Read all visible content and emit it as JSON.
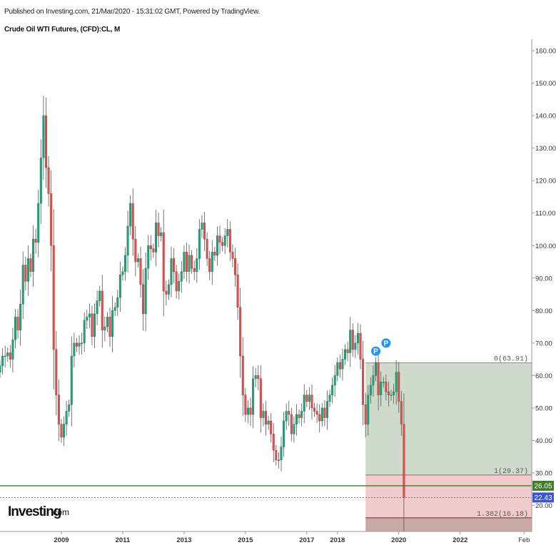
{
  "header": {
    "published": "Published on Investing.com, 21/Mar/2020 - 15:31:02 GMT, Powered by TradingView.",
    "symbol": "Crude Oil WTI Futures, (CFD):CL, M"
  },
  "logo": {
    "name": "Investing",
    "suffix": ".com"
  },
  "colors": {
    "up": "#26a17b",
    "down": "#e0524f",
    "wick": "#555555",
    "green_zone": "#cfdccb",
    "red_zone": "#f1cccc",
    "support_line": "#3f7d2a",
    "price_line": "#3a56d8"
  },
  "chart_data": {
    "type": "candlestick",
    "timeframe": "M",
    "ylim": [
      10,
      162
    ],
    "y_ticks": [
      "160.00",
      "150.00",
      "140.00",
      "130.00",
      "120.00",
      "110.00",
      "100.00",
      "90.00",
      "80.00",
      "70.00",
      "60.00",
      "50.00",
      "40.00",
      "30.00",
      "20.00"
    ],
    "y_tick_values": [
      160,
      150,
      140,
      130,
      120,
      110,
      100,
      90,
      80,
      70,
      60,
      50,
      40,
      30,
      20
    ],
    "x_ticks": [
      "2009",
      "2011",
      "2013",
      "2015",
      "2017",
      "2018",
      "2020",
      "2022",
      "Feb"
    ],
    "x_tick_dates": [
      "2009-01",
      "2011-01",
      "2013-01",
      "2015-01",
      "2017-01",
      "2018-01",
      "2020-01",
      "2022-01",
      "2024-02"
    ],
    "x_range": [
      "2007-01",
      "2024-05"
    ],
    "closes": [
      [
        "2007-01",
        63
      ],
      [
        "2007-02",
        66
      ],
      [
        "2007-03",
        66
      ],
      [
        "2007-04",
        67
      ],
      [
        "2007-05",
        65
      ],
      [
        "2007-06",
        71
      ],
      [
        "2007-07",
        78
      ],
      [
        "2007-08",
        74
      ],
      [
        "2007-09",
        82
      ],
      [
        "2007-10",
        94
      ],
      [
        "2007-11",
        89
      ],
      [
        "2007-12",
        96
      ],
      [
        "2008-01",
        92
      ],
      [
        "2008-02",
        102
      ],
      [
        "2008-03",
        101
      ],
      [
        "2008-04",
        113
      ],
      [
        "2008-05",
        127
      ],
      [
        "2008-06",
        140
      ],
      [
        "2008-07",
        124
      ],
      [
        "2008-08",
        116
      ],
      [
        "2008-09",
        100
      ],
      [
        "2008-10",
        68
      ],
      [
        "2008-11",
        54
      ],
      [
        "2008-12",
        45
      ],
      [
        "2009-01",
        41
      ],
      [
        "2009-02",
        45
      ],
      [
        "2009-03",
        49
      ],
      [
        "2009-04",
        51
      ],
      [
        "2009-05",
        66
      ],
      [
        "2009-06",
        70
      ],
      [
        "2009-07",
        69
      ],
      [
        "2009-08",
        70
      ],
      [
        "2009-09",
        70
      ],
      [
        "2009-10",
        77
      ],
      [
        "2009-11",
        78
      ],
      [
        "2009-12",
        79
      ],
      [
        "2010-01",
        72
      ],
      [
        "2010-02",
        79
      ],
      [
        "2010-03",
        83
      ],
      [
        "2010-04",
        86
      ],
      [
        "2010-05",
        74
      ],
      [
        "2010-06",
        75
      ],
      [
        "2010-07",
        78
      ],
      [
        "2010-08",
        72
      ],
      [
        "2010-09",
        80
      ],
      [
        "2010-10",
        81
      ],
      [
        "2010-11",
        84
      ],
      [
        "2010-12",
        91
      ],
      [
        "2011-01",
        92
      ],
      [
        "2011-02",
        97
      ],
      [
        "2011-03",
        106
      ],
      [
        "2011-04",
        113
      ],
      [
        "2011-05",
        102
      ],
      [
        "2011-06",
        95
      ],
      [
        "2011-07",
        96
      ],
      [
        "2011-08",
        88
      ],
      [
        "2011-09",
        79
      ],
      [
        "2011-10",
        93
      ],
      [
        "2011-11",
        100
      ],
      [
        "2011-12",
        99
      ],
      [
        "2012-01",
        98
      ],
      [
        "2012-02",
        107
      ],
      [
        "2012-03",
        103
      ],
      [
        "2012-04",
        104
      ],
      [
        "2012-05",
        86
      ],
      [
        "2012-06",
        85
      ],
      [
        "2012-07",
        88
      ],
      [
        "2012-08",
        96
      ],
      [
        "2012-09",
        92
      ],
      [
        "2012-10",
        86
      ],
      [
        "2012-11",
        89
      ],
      [
        "2012-12",
        92
      ],
      [
        "2013-01",
        98
      ],
      [
        "2013-02",
        92
      ],
      [
        "2013-03",
        97
      ],
      [
        "2013-04",
        93
      ],
      [
        "2013-05",
        92
      ],
      [
        "2013-06",
        96
      ],
      [
        "2013-07",
        105
      ],
      [
        "2013-08",
        107
      ],
      [
        "2013-09",
        102
      ],
      [
        "2013-10",
        96
      ],
      [
        "2013-11",
        92
      ],
      [
        "2013-12",
        98
      ],
      [
        "2014-01",
        97
      ],
      [
        "2014-02",
        103
      ],
      [
        "2014-03",
        101
      ],
      [
        "2014-04",
        100
      ],
      [
        "2014-05",
        103
      ],
      [
        "2014-06",
        105
      ],
      [
        "2014-07",
        98
      ],
      [
        "2014-08",
        96
      ],
      [
        "2014-09",
        91
      ],
      [
        "2014-10",
        81
      ],
      [
        "2014-11",
        66
      ],
      [
        "2014-12",
        54
      ],
      [
        "2015-01",
        48
      ],
      [
        "2015-02",
        50
      ],
      [
        "2015-03",
        48
      ],
      [
        "2015-04",
        59
      ],
      [
        "2015-05",
        60
      ],
      [
        "2015-06",
        59
      ],
      [
        "2015-07",
        47
      ],
      [
        "2015-08",
        49
      ],
      [
        "2015-09",
        45
      ],
      [
        "2015-10",
        46
      ],
      [
        "2015-11",
        42
      ],
      [
        "2015-12",
        37
      ],
      [
        "2016-01",
        34
      ],
      [
        "2016-02",
        34
      ],
      [
        "2016-03",
        38
      ],
      [
        "2016-04",
        46
      ],
      [
        "2016-05",
        49
      ],
      [
        "2016-06",
        48
      ],
      [
        "2016-07",
        42
      ],
      [
        "2016-08",
        45
      ],
      [
        "2016-09",
        48
      ],
      [
        "2016-10",
        47
      ],
      [
        "2016-11",
        49
      ],
      [
        "2016-12",
        54
      ],
      [
        "2017-01",
        52
      ],
      [
        "2017-02",
        54
      ],
      [
        "2017-03",
        50
      ],
      [
        "2017-04",
        49
      ],
      [
        "2017-05",
        48
      ],
      [
        "2017-06",
        46
      ],
      [
        "2017-07",
        50
      ],
      [
        "2017-08",
        47
      ],
      [
        "2017-09",
        52
      ],
      [
        "2017-10",
        54
      ],
      [
        "2017-11",
        57
      ],
      [
        "2017-12",
        60
      ],
      [
        "2018-01",
        64
      ],
      [
        "2018-02",
        62
      ],
      [
        "2018-03",
        65
      ],
      [
        "2018-04",
        68
      ],
      [
        "2018-05",
        67
      ],
      [
        "2018-06",
        74
      ],
      [
        "2018-07",
        68
      ],
      [
        "2018-08",
        70
      ],
      [
        "2018-09",
        73
      ],
      [
        "2018-10",
        65
      ],
      [
        "2018-11",
        51
      ],
      [
        "2018-12",
        45
      ],
      [
        "2019-01",
        54
      ],
      [
        "2019-02",
        57
      ],
      [
        "2019-03",
        60
      ],
      [
        "2019-04",
        64
      ],
      [
        "2019-05",
        54
      ],
      [
        "2019-06",
        58
      ],
      [
        "2019-07",
        58
      ],
      [
        "2019-08",
        55
      ],
      [
        "2019-09",
        54
      ],
      [
        "2019-10",
        54
      ],
      [
        "2019-11",
        55
      ],
      [
        "2019-12",
        61
      ],
      [
        "2020-01",
        52
      ],
      [
        "2020-02",
        45
      ],
      [
        "2020-03",
        22.43
      ]
    ],
    "annotations": [
      {
        "label": "P",
        "date": "2019-04",
        "price": 67.5
      },
      {
        "label": "P",
        "date": "2019-08",
        "price": 70
      }
    ],
    "fibonacci": {
      "start_date": "2018-12",
      "end_date": "2024-05",
      "levels": [
        {
          "label": "0(63.91)",
          "price": 63.91
        },
        {
          "label": "1(29.37)",
          "price": 29.37
        },
        {
          "label": "1.382(16.18)",
          "price": 16.18
        }
      ]
    },
    "horizontal_lines": [
      {
        "label": "26.05",
        "price": 26.05,
        "style": "solid"
      },
      {
        "label": "22.43",
        "price": 22.43,
        "style": "dotted"
      }
    ]
  }
}
